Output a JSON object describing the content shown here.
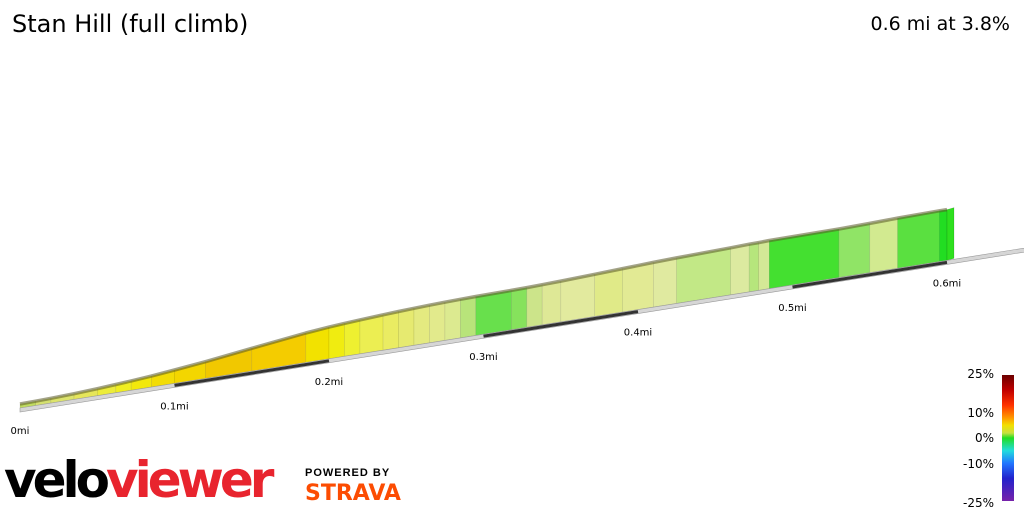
{
  "header": {
    "title": "Stan Hill (full climb)",
    "summary": "0.6 mi at 3.8%"
  },
  "chart_data": {
    "type": "area",
    "title": "Stan Hill (full climb)",
    "x_unit": "mi",
    "tick_labels": [
      "0mi",
      "0.1mi",
      "0.2mi",
      "0.3mi",
      "0.4mi",
      "0.5mi",
      "0.6mi"
    ],
    "xlim": [
      0,
      0.66
    ],
    "gradient_scale": {
      "labels": [
        "25%",
        "10%",
        "0%",
        "-10%",
        "-25%"
      ],
      "range": [
        -25,
        25
      ]
    },
    "segments": [
      {
        "end": 0.01,
        "gradient": 1.5,
        "color": "#c0dc60"
      },
      {
        "end": 0.02,
        "gradient": 2.0,
        "color": "#d4e070"
      },
      {
        "end": 0.035,
        "gradient": 3.0,
        "color": "#dde46c"
      },
      {
        "end": 0.05,
        "gradient": 4.0,
        "color": "#e6e65a"
      },
      {
        "end": 0.062,
        "gradient": 5.0,
        "color": "#ecec3a"
      },
      {
        "end": 0.072,
        "gradient": 5.5,
        "color": "#f0ee20"
      },
      {
        "end": 0.085,
        "gradient": 6.0,
        "color": "#f2e80c"
      },
      {
        "end": 0.1,
        "gradient": 7.5,
        "color": "#f2dc06"
      },
      {
        "end": 0.12,
        "gradient": 8.0,
        "color": "#f3d600"
      },
      {
        "end": 0.15,
        "gradient": 9.5,
        "color": "#f1c800"
      },
      {
        "end": 0.185,
        "gradient": 9.0,
        "color": "#f4cc00"
      },
      {
        "end": 0.2,
        "gradient": 7.0,
        "color": "#f2e200"
      },
      {
        "end": 0.21,
        "gradient": 6.0,
        "color": "#f0ec10"
      },
      {
        "end": 0.22,
        "gradient": 5.0,
        "color": "#eef030"
      },
      {
        "end": 0.235,
        "gradient": 4.5,
        "color": "#ecee52"
      },
      {
        "end": 0.245,
        "gradient": 4.0,
        "color": "#eaec62"
      },
      {
        "end": 0.255,
        "gradient": 3.5,
        "color": "#e6ea70"
      },
      {
        "end": 0.265,
        "gradient": 3.0,
        "color": "#e4ea80"
      },
      {
        "end": 0.275,
        "gradient": 2.5,
        "color": "#e2ea8c"
      },
      {
        "end": 0.285,
        "gradient": 2.0,
        "color": "#dcea90"
      },
      {
        "end": 0.295,
        "gradient": 1.5,
        "color": "#b8e47a"
      },
      {
        "end": 0.318,
        "gradient": 1.0,
        "color": "#68e04c"
      },
      {
        "end": 0.328,
        "gradient": 1.5,
        "color": "#86e25c"
      },
      {
        "end": 0.338,
        "gradient": 2.0,
        "color": "#cce48a"
      },
      {
        "end": 0.35,
        "gradient": 2.5,
        "color": "#dee896"
      },
      {
        "end": 0.372,
        "gradient": 3.0,
        "color": "#e2ea9e"
      },
      {
        "end": 0.39,
        "gradient": 3.5,
        "color": "#e0ea88"
      },
      {
        "end": 0.41,
        "gradient": 3.0,
        "color": "#e2ea94"
      },
      {
        "end": 0.425,
        "gradient": 2.5,
        "color": "#e0eaa0"
      },
      {
        "end": 0.46,
        "gradient": 2.0,
        "color": "#c2e886"
      },
      {
        "end": 0.472,
        "gradient": 2.5,
        "color": "#dceaa0"
      },
      {
        "end": 0.478,
        "gradient": 1.5,
        "color": "#b6e67c"
      },
      {
        "end": 0.485,
        "gradient": 2.0,
        "color": "#d4e896"
      },
      {
        "end": 0.53,
        "gradient": 0.5,
        "color": "#44e030"
      },
      {
        "end": 0.55,
        "gradient": 1.5,
        "color": "#90e466"
      },
      {
        "end": 0.568,
        "gradient": 2.5,
        "color": "#d2ea90"
      },
      {
        "end": 0.595,
        "gradient": 1.0,
        "color": "#5ae040"
      },
      {
        "end": 0.6,
        "gradient": 0.0,
        "color": "#22dd22"
      }
    ]
  },
  "branding": {
    "logo_velo": "velo",
    "logo_viewer": "viewer",
    "powered_by": "POWERED BY",
    "strava": "STRAVA"
  }
}
